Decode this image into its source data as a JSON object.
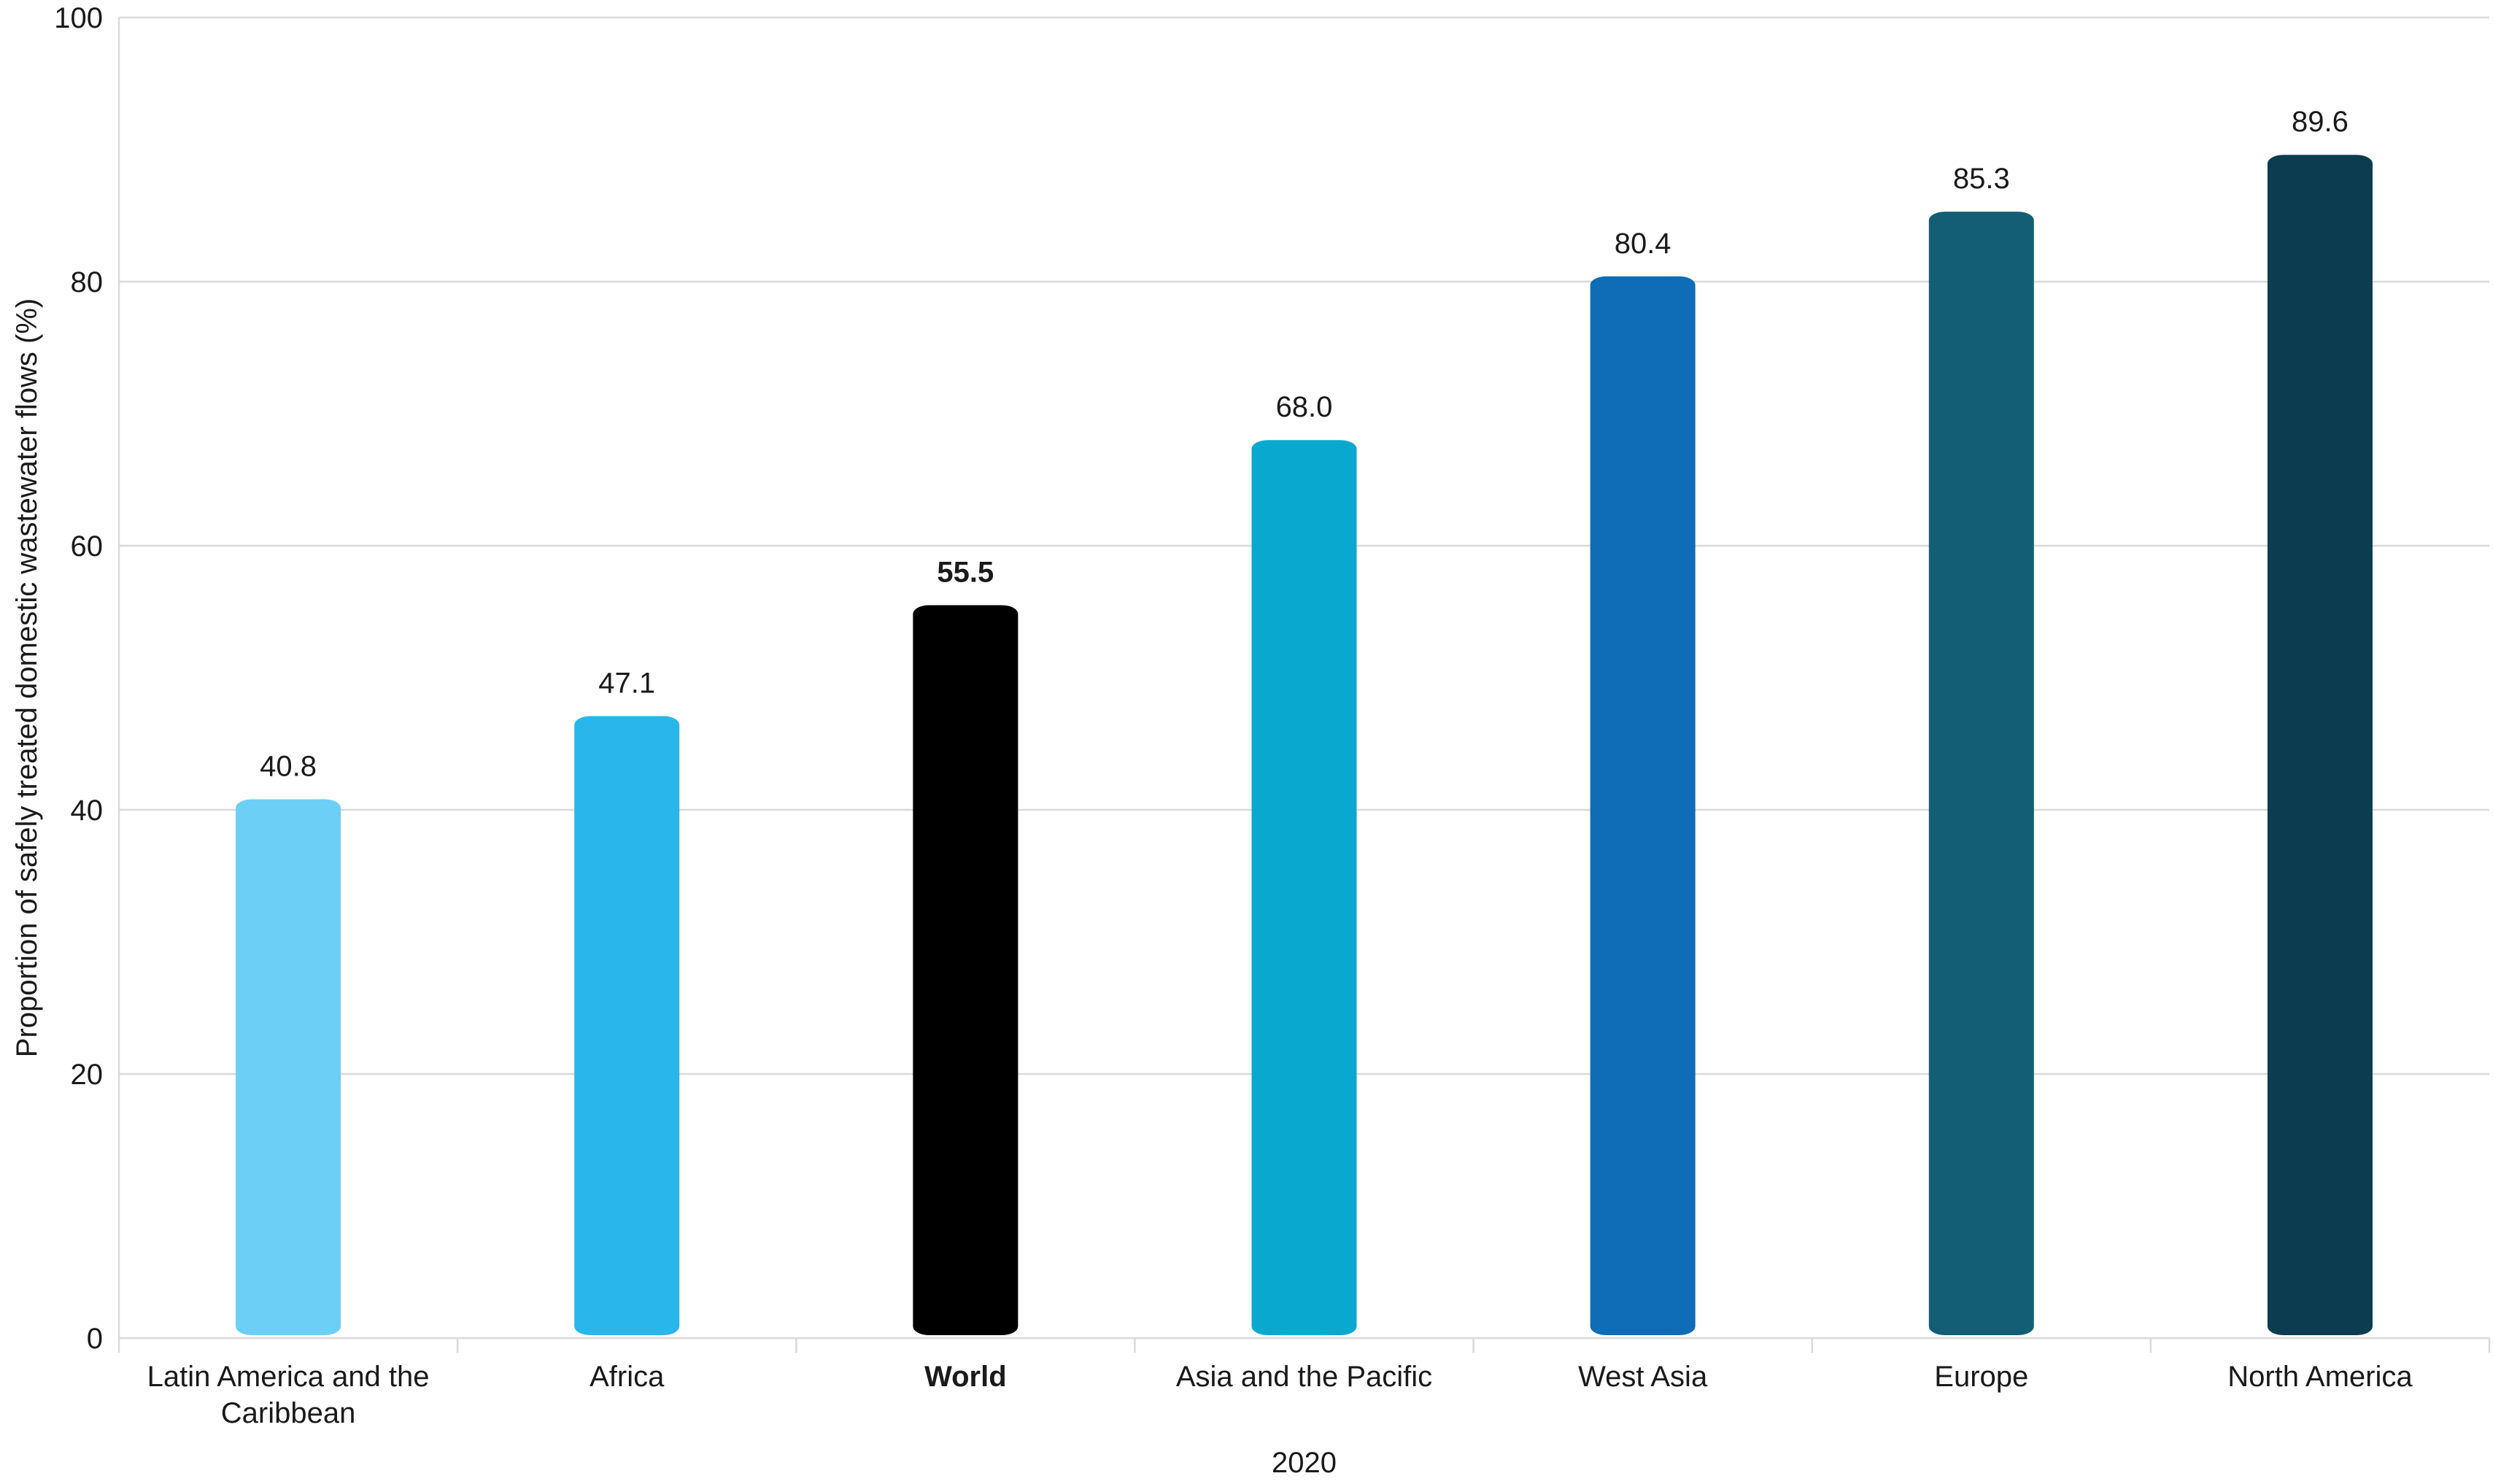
{
  "chart_data": {
    "type": "bar",
    "title": "",
    "xlabel": "2020",
    "ylabel": "Proportion of safely treated domestic wastewater flows (%)",
    "ylim": [
      0,
      100
    ],
    "yticks": [
      0,
      20,
      40,
      60,
      80,
      100
    ],
    "grid": true,
    "categories": [
      "Latin America and the Caribbean",
      "Africa",
      "World",
      "Asia and the Pacific",
      "West Asia",
      "Europe",
      "North America"
    ],
    "category_lines": [
      [
        "Latin America and the",
        "Caribbean"
      ],
      [
        "Africa"
      ],
      [
        "World"
      ],
      [
        "Asia and the Pacific"
      ],
      [
        "West Asia"
      ],
      [
        "Europe"
      ],
      [
        "North America"
      ]
    ],
    "values": [
      40.8,
      47.1,
      55.5,
      68.0,
      80.4,
      85.3,
      89.6
    ],
    "value_labels": [
      "40.8",
      "47.1",
      "55.5",
      "68.0",
      "80.4",
      "85.3",
      "89.6"
    ],
    "colors": [
      "#6ccff6",
      "#29b6ea",
      "#000000",
      "#09a9cf",
      "#0f6cb6",
      "#135e74",
      "#0b3c50"
    ],
    "highlight_category": "World"
  }
}
